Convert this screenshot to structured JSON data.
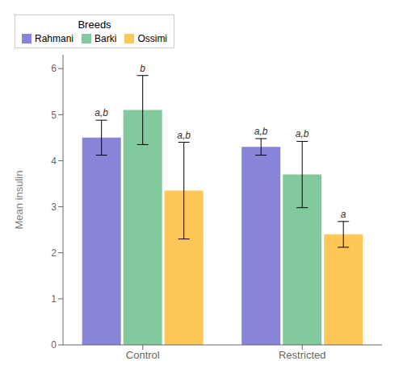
{
  "chart_data": {
    "type": "bar",
    "categories": [
      "Control",
      "Restricted"
    ],
    "ylabel": "Mean insulin",
    "legend_title": "Breeds",
    "legend": "upper right",
    "grid": false,
    "ylim": [
      0,
      6.3
    ],
    "yticks": [
      0,
      1,
      2,
      3,
      4,
      5,
      6
    ],
    "series": [
      {
        "name": "Rahmani",
        "values": [
          4.5,
          4.3
        ],
        "errors": [
          0.38,
          0.18
        ],
        "labels": [
          "a,b",
          "a,b"
        ]
      },
      {
        "name": "Barki",
        "values": [
          5.1,
          3.7
        ],
        "errors": [
          0.75,
          0.72
        ],
        "labels": [
          "b",
          "a,b"
        ]
      },
      {
        "name": "Ossimi",
        "values": [
          3.35,
          2.4
        ],
        "errors": [
          1.05,
          0.28
        ],
        "labels": [
          "a,b",
          "a"
        ]
      }
    ]
  }
}
